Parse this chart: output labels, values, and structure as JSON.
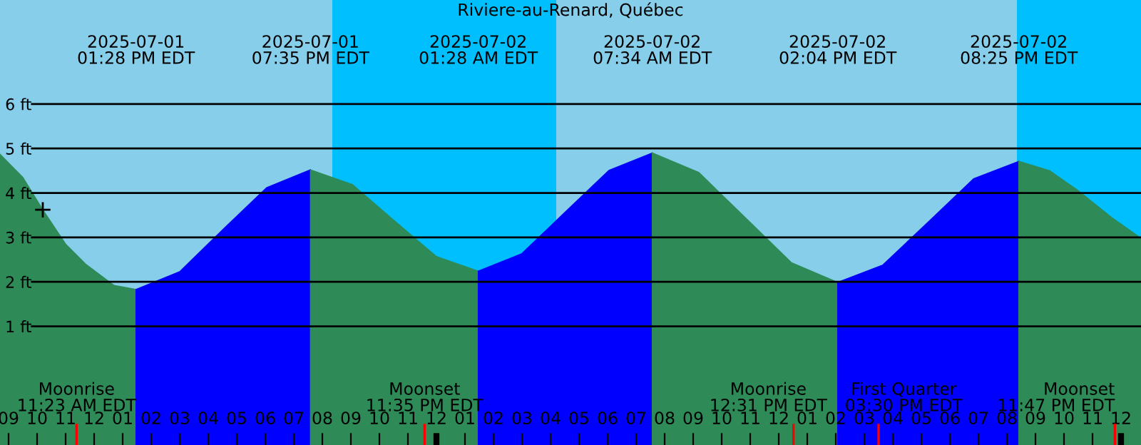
{
  "chart_data": {
    "type": "area",
    "title": "Riviere-au-Renard, Québec",
    "xlim": [
      "2025-07-01T08:42",
      "2025-07-03T00:42"
    ],
    "ylim": [
      -1.67,
      8.34
    ],
    "yticks": [
      {
        "value": 1,
        "label": "1 ft"
      },
      {
        "value": 2,
        "label": "2 ft"
      },
      {
        "value": 3,
        "label": "3 ft"
      },
      {
        "value": 4,
        "label": "4 ft"
      },
      {
        "value": 5,
        "label": "5 ft"
      },
      {
        "value": 6,
        "label": "6 ft"
      }
    ],
    "xticks": [
      {
        "value": "2025-07-01T09:00",
        "label": "09"
      },
      {
        "value": "2025-07-01T10:00",
        "label": "10"
      },
      {
        "value": "2025-07-01T11:00",
        "label": "11"
      },
      {
        "value": "2025-07-01T12:00",
        "label": "12"
      },
      {
        "value": "2025-07-01T13:00",
        "label": "01"
      },
      {
        "value": "2025-07-01T14:00",
        "label": "02"
      },
      {
        "value": "2025-07-01T15:00",
        "label": "03"
      },
      {
        "value": "2025-07-01T16:00",
        "label": "04"
      },
      {
        "value": "2025-07-01T17:00",
        "label": "05"
      },
      {
        "value": "2025-07-01T18:00",
        "label": "06"
      },
      {
        "value": "2025-07-01T19:00",
        "label": "07"
      },
      {
        "value": "2025-07-01T20:00",
        "label": "08"
      },
      {
        "value": "2025-07-01T21:00",
        "label": "09"
      },
      {
        "value": "2025-07-01T22:00",
        "label": "10"
      },
      {
        "value": "2025-07-01T23:00",
        "label": "11"
      },
      {
        "value": "2025-07-02T00:00",
        "label": "12"
      },
      {
        "value": "2025-07-02T01:00",
        "label": "01"
      },
      {
        "value": "2025-07-02T02:00",
        "label": "02"
      },
      {
        "value": "2025-07-02T03:00",
        "label": "03"
      },
      {
        "value": "2025-07-02T04:00",
        "label": "04"
      },
      {
        "value": "2025-07-02T05:00",
        "label": "05"
      },
      {
        "value": "2025-07-02T06:00",
        "label": "06"
      },
      {
        "value": "2025-07-02T07:00",
        "label": "07"
      },
      {
        "value": "2025-07-02T08:00",
        "label": "08"
      },
      {
        "value": "2025-07-02T09:00",
        "label": "09"
      },
      {
        "value": "2025-07-02T10:00",
        "label": "10"
      },
      {
        "value": "2025-07-02T11:00",
        "label": "11"
      },
      {
        "value": "2025-07-02T12:00",
        "label": "12"
      },
      {
        "value": "2025-07-02T13:00",
        "label": "01"
      },
      {
        "value": "2025-07-02T14:00",
        "label": "02"
      },
      {
        "value": "2025-07-02T15:00",
        "label": "03"
      },
      {
        "value": "2025-07-02T16:00",
        "label": "04"
      },
      {
        "value": "2025-07-02T17:00",
        "label": "05"
      },
      {
        "value": "2025-07-02T18:00",
        "label": "06"
      },
      {
        "value": "2025-07-02T19:00",
        "label": "07"
      },
      {
        "value": "2025-07-02T20:00",
        "label": "08"
      },
      {
        "value": "2025-07-02T21:00",
        "label": "09"
      },
      {
        "value": "2025-07-02T22:00",
        "label": "10"
      },
      {
        "value": "2025-07-02T23:00",
        "label": "11"
      },
      {
        "value": "2025-07-03T00:00",
        "label": "12"
      }
    ],
    "grid": "y",
    "x2lim": [
      "2025-07-01T08:42",
      "2025-07-03T00:42"
    ],
    "x2ticks": [
      {
        "value": "2025-07-01T13:28",
        "label": "2025-07-01\n01:28 PM EDT"
      },
      {
        "value": "2025-07-01T19:35",
        "label": "2025-07-01\n07:35 PM EDT"
      },
      {
        "value": "2025-07-02T01:28",
        "label": "2025-07-02\n01:28 AM EDT"
      },
      {
        "value": "2025-07-02T07:34",
        "label": "2025-07-02\n07:34 AM EDT"
      },
      {
        "value": "2025-07-02T14:04",
        "label": "2025-07-02\n02:04 PM EDT"
      },
      {
        "value": "2025-07-02T20:25",
        "label": "2025-07-02\n08:25 PM EDT"
      }
    ],
    "series": [
      {
        "color": "#2e8b57",
        "x": [
          "2025-07-01T08:42",
          "2025-07-01T09:30",
          "2025-07-01T10:12",
          "2025-07-01T11:00",
          "2025-07-01T11:42",
          "2025-07-01T12:42",
          "2025-07-01T13:28"
        ],
        "values": [
          4.87,
          4.35,
          3.62,
          2.85,
          2.4,
          1.92,
          1.83
        ]
      },
      {
        "color": "#0000ff",
        "x": [
          "2025-07-01T13:28",
          "2025-07-01T15:00",
          "2025-07-01T16:31",
          "2025-07-01T18:03",
          "2025-07-01T19:35"
        ],
        "values": [
          1.83,
          2.23,
          3.18,
          4.12,
          4.52
        ]
      },
      {
        "color": "#2e8b57",
        "x": [
          "2025-07-01T19:35",
          "2025-07-01T21:03",
          "2025-07-01T22:31",
          "2025-07-02T00:00",
          "2025-07-02T01:28"
        ],
        "values": [
          4.52,
          4.19,
          3.38,
          2.57,
          2.24
        ]
      },
      {
        "color": "#0000ff",
        "x": [
          "2025-07-02T01:28",
          "2025-07-02T02:59",
          "2025-07-02T04:31",
          "2025-07-02T06:03",
          "2025-07-02T07:34"
        ],
        "values": [
          2.24,
          2.63,
          3.57,
          4.51,
          4.9
        ]
      },
      {
        "color": "#2e8b57",
        "x": [
          "2025-07-02T07:34",
          "2025-07-02T09:12",
          "2025-07-02T10:49",
          "2025-07-02T12:27",
          "2025-07-02T14:04"
        ],
        "values": [
          4.9,
          4.46,
          3.45,
          2.43,
          1.99
        ]
      },
      {
        "color": "#0000ff",
        "x": [
          "2025-07-02T14:04",
          "2025-07-02T15:39",
          "2025-07-02T17:15",
          "2025-07-02T18:50",
          "2025-07-02T20:25"
        ],
        "values": [
          1.99,
          2.38,
          3.35,
          4.32,
          4.71
        ]
      },
      {
        "color": "#2e8b57",
        "x": [
          "2025-07-02T20:25",
          "2025-07-02T21:30",
          "2025-07-02T22:30",
          "2025-07-02T23:40",
          "2025-07-03T00:42"
        ],
        "values": [
          4.71,
          4.5,
          4.05,
          3.45,
          2.98
        ]
      },
      {
        "type": "scatter",
        "marker": "cross",
        "color": "#000000",
        "x": [
          "2025-07-01T10:12"
        ],
        "values": [
          3.62
        ]
      }
    ],
    "bands": [
      {
        "axis": "x",
        "from": "2025-07-01T20:21",
        "to": "2025-07-02T04:12",
        "color": "#00bfff"
      },
      {
        "axis": "x",
        "from": "2025-07-02T20:21",
        "to": "2025-07-03T00:42",
        "color": "#00bfff"
      }
    ],
    "ref_lines": [
      {
        "axis": "x",
        "value": "2025-07-01T11:23",
        "label": "Moonrise\n11:23 AM EDT",
        "color": "#ff0000"
      },
      {
        "axis": "x",
        "value": "2025-07-01T23:35",
        "label": "Moonset\n11:35 PM EDT",
        "color": "#ff0000"
      },
      {
        "axis": "x",
        "value": "2025-07-02T12:31",
        "label": "Moonrise\n12:31 PM EDT",
        "color": "#ff0000"
      },
      {
        "axis": "x",
        "value": "2025-07-02T15:30",
        "label": "First Quarter\n03:30 PM EDT",
        "color": "#ff0000"
      },
      {
        "axis": "x",
        "value": "2025-07-02T23:47",
        "label": "Moonset\n11:47 PM EDT",
        "color": "#ff0000"
      }
    ]
  }
}
